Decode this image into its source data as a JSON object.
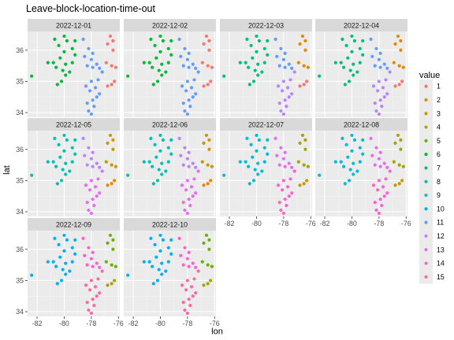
{
  "chart_data": {
    "type": "scatter",
    "title": "Leave-block-location-time-out",
    "xlabel": "lon",
    "ylabel": "lat",
    "xlim": [
      -82.7,
      -75.9
    ],
    "ylim": [
      33.85,
      36.6
    ],
    "x_ticks": [
      -82,
      -80,
      -78,
      -76
    ],
    "x_tick_labels": [
      "-82",
      "-80",
      "-78",
      "-76"
    ],
    "y_ticks": [
      34,
      35,
      36
    ],
    "y_tick_labels": [
      "34",
      "35",
      "36"
    ],
    "legend": {
      "title": "value",
      "position": "right",
      "entries": [
        {
          "label": "1",
          "color": "#F8766D"
        },
        {
          "label": "2",
          "color": "#E58700"
        },
        {
          "label": "3",
          "color": "#C99800"
        },
        {
          "label": "4",
          "color": "#A3A500"
        },
        {
          "label": "5",
          "color": "#6BB100"
        },
        {
          "label": "6",
          "color": "#00BA38"
        },
        {
          "label": "7",
          "color": "#00BF7D"
        },
        {
          "label": "8",
          "color": "#00C0AF"
        },
        {
          "label": "9",
          "color": "#00BCD8"
        },
        {
          "label": "10",
          "color": "#00B0F6"
        },
        {
          "label": "11",
          "color": "#619CFF"
        },
        {
          "label": "12",
          "color": "#B983FF"
        },
        {
          "label": "13",
          "color": "#E76BF3"
        },
        {
          "label": "14",
          "color": "#FD61D1"
        },
        {
          "label": "15",
          "color": "#FF67A4"
        }
      ]
    },
    "grid": true,
    "panels": [
      {
        "label": "2022-12-01",
        "west": 6,
        "east": 11,
        "south": 11,
        "northeast": 1,
        "se": 1
      },
      {
        "label": "2022-12-02",
        "west": 6,
        "east": 11,
        "south": 11,
        "northeast": 1,
        "se": 1
      },
      {
        "label": "2022-12-03",
        "west": 7,
        "east": 11,
        "south": 12,
        "northeast": 2,
        "se": 1
      },
      {
        "label": "2022-12-04",
        "west": 7,
        "east": 11,
        "south": 12,
        "northeast": 2,
        "se": 1
      },
      {
        "label": "2022-12-05",
        "west": 8,
        "east": 12,
        "south": 13,
        "northeast": 3,
        "se": 2
      },
      {
        "label": "2022-12-06",
        "west": 8,
        "east": 12,
        "south": 13,
        "northeast": 3,
        "se": 2
      },
      {
        "label": "2022-12-07",
        "west": 9,
        "east": 13,
        "south": 14,
        "northeast": 4,
        "se": 3
      },
      {
        "label": "2022-12-08",
        "west": 9,
        "east": 13,
        "south": 14,
        "northeast": 4,
        "se": 3
      },
      {
        "label": "2022-12-09",
        "west": 10,
        "east": 14,
        "south": 15,
        "northeast": 5,
        "se": 4
      },
      {
        "label": "2022-12-10",
        "west": 10,
        "east": 14,
        "south": 15,
        "northeast": 5,
        "se": 4
      }
    ],
    "clusters": {
      "west": [
        [
          -82.4,
          35.17
        ],
        [
          -80.6,
          35.45
        ],
        [
          -80.2,
          35.0
        ],
        [
          -79.9,
          35.55
        ],
        [
          -80.0,
          35.95
        ],
        [
          -80.4,
          36.15
        ],
        [
          -79.8,
          36.3
        ],
        [
          -79.4,
          36.05
        ],
        [
          -80.8,
          35.6
        ],
        [
          -80.3,
          35.75
        ],
        [
          -79.6,
          35.3
        ],
        [
          -79.9,
          35.2
        ],
        [
          -80.5,
          34.9
        ],
        [
          -79.4,
          35.6
        ],
        [
          -79.2,
          35.85
        ],
        [
          -80.0,
          36.45
        ],
        [
          -79.2,
          36.3
        ],
        [
          -80.7,
          36.35
        ],
        [
          -81.2,
          35.6
        ],
        [
          -80.1,
          35.35
        ]
      ],
      "east": [
        [
          -78.6,
          36.35
        ],
        [
          -78.2,
          36.05
        ],
        [
          -77.9,
          35.9
        ],
        [
          -78.5,
          35.8
        ],
        [
          -78.0,
          35.7
        ],
        [
          -77.6,
          35.55
        ],
        [
          -78.3,
          35.5
        ],
        [
          -77.9,
          35.45
        ],
        [
          -77.4,
          35.42
        ]
      ],
      "south": [
        [
          -77.2,
          35.3
        ],
        [
          -77.5,
          35.05
        ],
        [
          -78.0,
          35.0
        ],
        [
          -77.7,
          34.8
        ],
        [
          -78.1,
          34.7
        ],
        [
          -77.4,
          34.6
        ],
        [
          -77.9,
          34.4
        ],
        [
          -78.3,
          34.3
        ],
        [
          -77.8,
          34.2
        ],
        [
          -78.2,
          34.05
        ],
        [
          -78.0,
          33.95
        ],
        [
          -77.6,
          34.5
        ],
        [
          -78.4,
          34.85
        ]
      ],
      "northeast": [
        [
          -76.6,
          36.45
        ],
        [
          -76.4,
          36.3
        ],
        [
          -76.8,
          36.2
        ],
        [
          -76.4,
          36.0
        ],
        [
          -76.9,
          35.6
        ],
        [
          -76.5,
          35.5
        ],
        [
          -76.2,
          35.45
        ]
      ],
      "se": [
        [
          -76.8,
          34.85
        ],
        [
          -76.5,
          34.9
        ],
        [
          -76.3,
          35.0
        ]
      ]
    }
  }
}
